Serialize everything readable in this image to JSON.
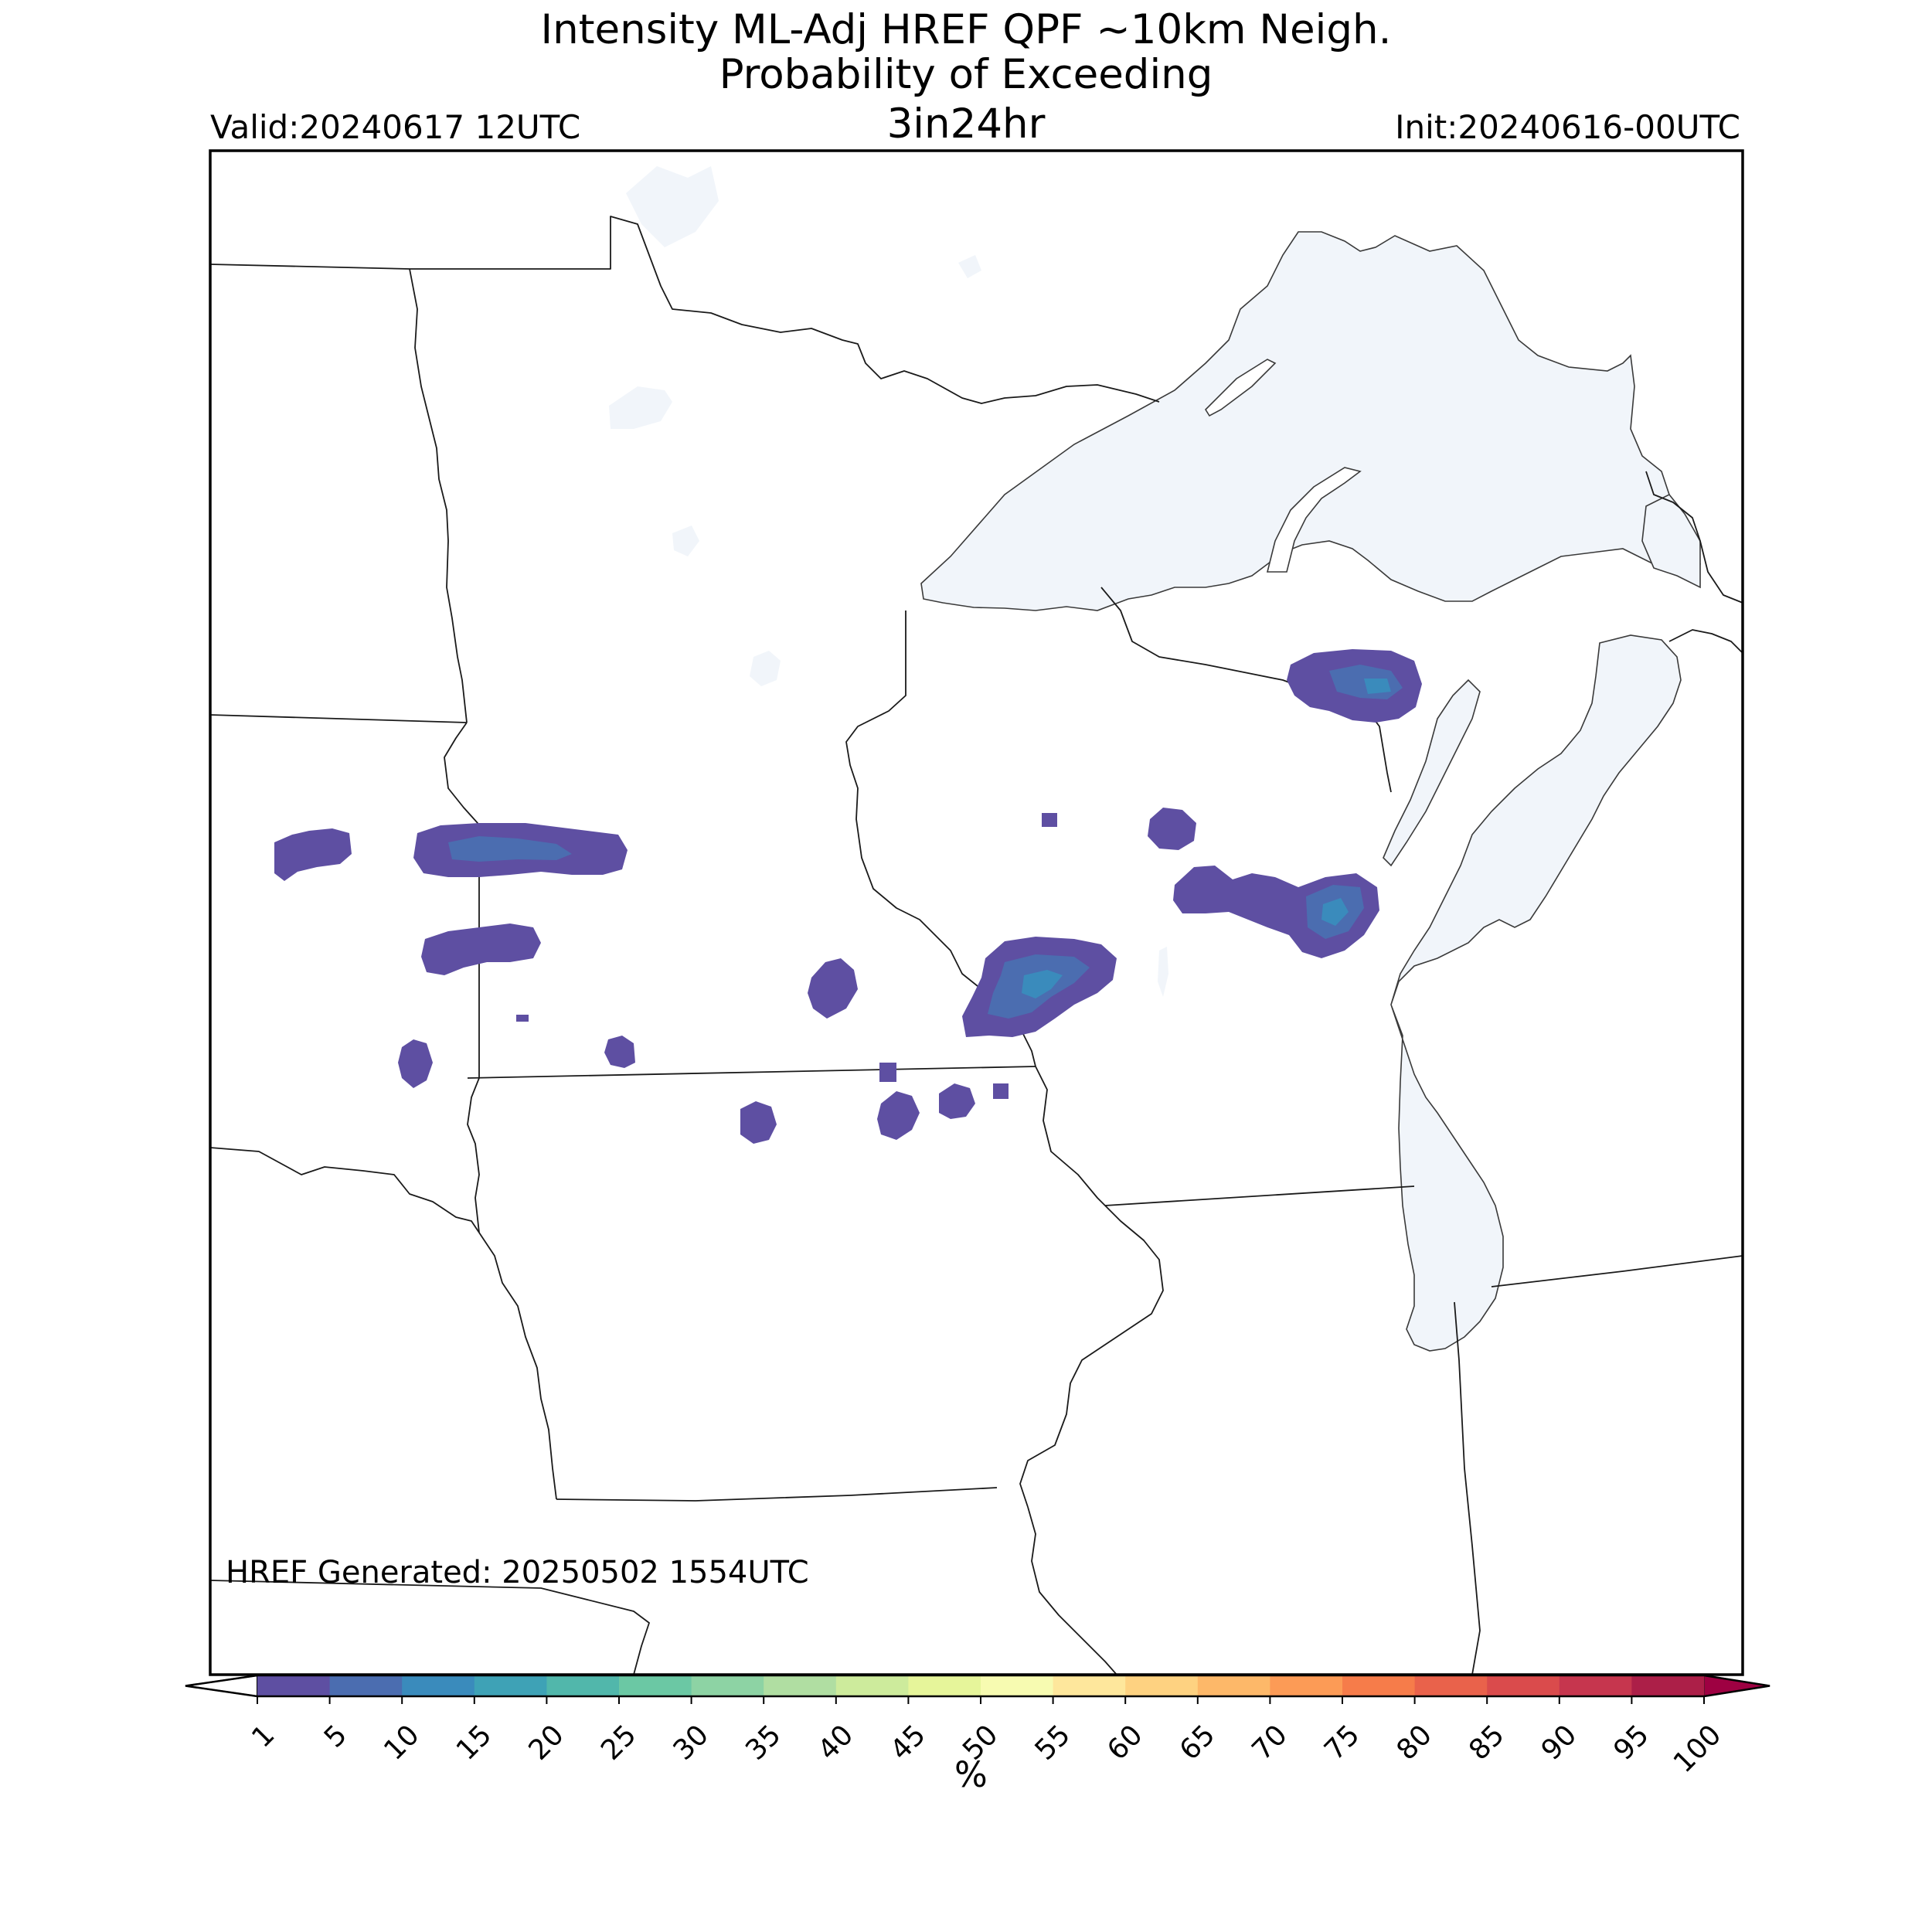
{
  "title": {
    "line1": "Intensity ML-Adj HREF QPF ~10km Neigh.",
    "line2": "Probability of Exceeding",
    "line3": "3in24hr"
  },
  "valid": "Valid:20240617 12UTC",
  "init": "Init:20240616-00UTC",
  "generated": "HREF Generated: 20250502 1554UTC",
  "colorbar": {
    "unit": "%",
    "ticks": [
      "1",
      "5",
      "10",
      "15",
      "20",
      "25",
      "30",
      "35",
      "40",
      "45",
      "50",
      "55",
      "60",
      "65",
      "70",
      "75",
      "80",
      "85",
      "90",
      "95",
      "100"
    ],
    "colors": [
      "#5e4fa2",
      "#4b6db0",
      "#3a8bbc",
      "#3ea2b6",
      "#51b7ab",
      "#6bc8a4",
      "#8dd3a4",
      "#b0dea2",
      "#cdeb9c",
      "#e6f59a",
      "#f7fbb1",
      "#fee79c",
      "#fed281",
      "#fdb869",
      "#fc9b56",
      "#f67c4a",
      "#e9624b",
      "#da4b4c",
      "#c6364e",
      "#ac1f48",
      "#9e0142"
    ]
  },
  "colors": {
    "water": "#f1f5fa",
    "precip_low": "#5e4fa2",
    "precip_mid": "#4b6db0",
    "precip_high": "#3a8bbc"
  }
}
